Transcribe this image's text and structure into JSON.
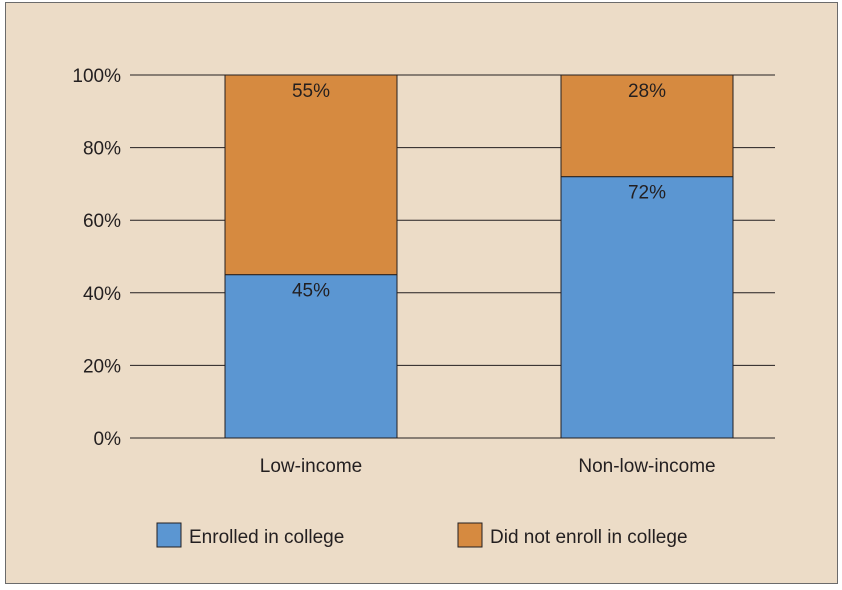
{
  "chart_data": {
    "type": "bar",
    "stacked": true,
    "title": "",
    "xlabel": "",
    "ylabel": "",
    "ylim": [
      0,
      100
    ],
    "yticks": [
      "0%",
      "20%",
      "40%",
      "60%",
      "80%",
      "100%"
    ],
    "grid": true,
    "legend_position": "bottom",
    "categories": [
      "Low-income",
      "Non-low-income"
    ],
    "series": [
      {
        "name": "Enrolled in college",
        "color": "#5b96d2",
        "values": [
          45,
          72
        ],
        "labels": [
          "45%",
          "72%"
        ]
      },
      {
        "name": "Did not enroll in college",
        "color": "#d68a40",
        "values": [
          55,
          28
        ],
        "labels": [
          "55%",
          "28%"
        ]
      }
    ]
  }
}
